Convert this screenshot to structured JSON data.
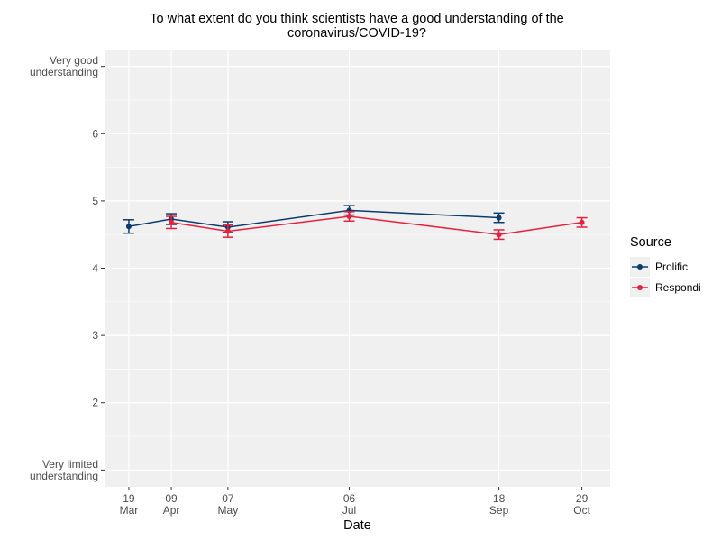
{
  "chart_data": {
    "type": "line",
    "title": "To what extent do you think scientists have a good understanding of the coronavirus/COVID-19?",
    "title_lines": [
      "To what extent do you think scientists have a good understanding of the",
      "coronavirus/COVID-19?"
    ],
    "xlabel": "Date",
    "ylabel": "",
    "ylim": [
      0.75,
      7.25
    ],
    "yticks": [
      {
        "value": 1,
        "lines": [
          "Very limited",
          "understanding"
        ]
      },
      {
        "value": 2,
        "lines": [
          "2"
        ]
      },
      {
        "value": 3,
        "lines": [
          "3"
        ]
      },
      {
        "value": 4,
        "lines": [
          "4"
        ]
      },
      {
        "value": 5,
        "lines": [
          "5"
        ]
      },
      {
        "value": 6,
        "lines": [
          "6"
        ]
      },
      {
        "value": 7,
        "lines": [
          "Very good",
          "understanding"
        ]
      }
    ],
    "xlim_dayofyear": [
      67,
      317
    ],
    "xticks": [
      {
        "day": 79,
        "lines": [
          "19",
          "Mar"
        ]
      },
      {
        "day": 100,
        "lines": [
          "09",
          "Apr"
        ]
      },
      {
        "day": 128,
        "lines": [
          "07",
          "May"
        ]
      },
      {
        "day": 188,
        "lines": [
          "06",
          "Jul"
        ]
      },
      {
        "day": 262,
        "lines": [
          "18",
          "Sep"
        ]
      },
      {
        "day": 303,
        "lines": [
          "29",
          "Oct"
        ]
      }
    ],
    "legend": {
      "title": "Source",
      "position": "right"
    },
    "grid": true,
    "series": [
      {
        "name": "Prolific",
        "color": "#0c3c6b",
        "points": [
          {
            "day": 79,
            "y": 4.62,
            "err": 0.1
          },
          {
            "day": 100,
            "y": 4.73,
            "err": 0.08
          },
          {
            "day": 128,
            "y": 4.61,
            "err": 0.08
          },
          {
            "day": 188,
            "y": 4.86,
            "err": 0.07
          },
          {
            "day": 262,
            "y": 4.75,
            "err": 0.07
          }
        ]
      },
      {
        "name": "Respondi",
        "color": "#e8203f",
        "points": [
          {
            "day": 100,
            "y": 4.68,
            "err": 0.09
          },
          {
            "day": 128,
            "y": 4.55,
            "err": 0.09
          },
          {
            "day": 188,
            "y": 4.77,
            "err": 0.07
          },
          {
            "day": 262,
            "y": 4.5,
            "err": 0.07
          },
          {
            "day": 303,
            "y": 4.68,
            "err": 0.07
          }
        ]
      }
    ]
  }
}
